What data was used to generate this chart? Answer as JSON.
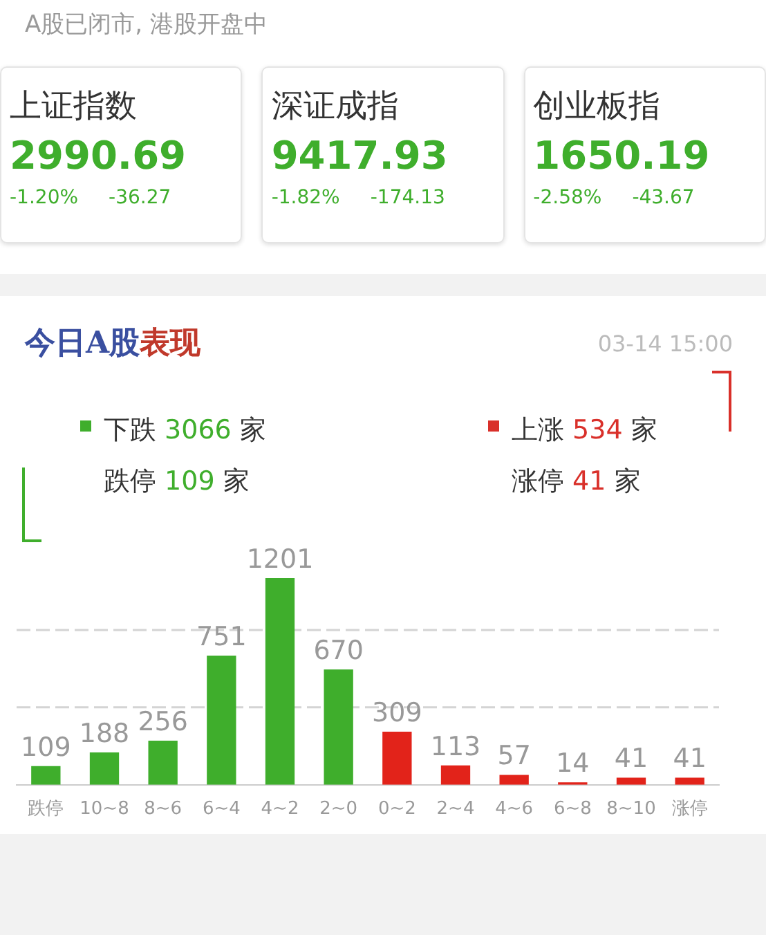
{
  "chart_data": [
    {
      "type": "other",
      "title": "A股已闭市, 港股开盘中",
      "annotations": [
        "上证指数",
        "2990.69",
        "-1.20%",
        "-36.27",
        "深证成指",
        "9417.93",
        "-1.82%",
        "-174.13",
        "创业板指",
        "1650.19",
        "-2.58%",
        "-43.67"
      ]
    },
    {
      "type": "bar",
      "title": "今日A股表现",
      "subtitle": "03-14 15:00",
      "annotations": [
        "下跌 3066 家",
        "跌停 109 家",
        "上涨 534 家",
        "涨停 41 家"
      ],
      "categories": [
        "跌停",
        "10~8",
        "8~6",
        "6~4",
        "4~2",
        "2~0",
        "0~2",
        "2~4",
        "4~6",
        "6~8",
        "8~10",
        "涨停"
      ],
      "values": [
        109,
        188,
        256,
        751,
        1201,
        670,
        309,
        113,
        57,
        14,
        41,
        41
      ],
      "colors": [
        "#3fae2c",
        "#3fae2c",
        "#3fae2c",
        "#3fae2c",
        "#3fae2c",
        "#3fae2c",
        "#e2231a",
        "#e2231a",
        "#e2231a",
        "#e2231a",
        "#e2231a",
        "#e2231a"
      ],
      "data_labels": true,
      "tick_labels": "x",
      "ylim": [
        0,
        1201
      ],
      "ref_lines": [
        {
          "axis": "y",
          "value": 450,
          "color": "#d4d4d4",
          "line_style": "dashed"
        },
        {
          "axis": "y",
          "value": 900,
          "color": "#d4d4d4",
          "line_style": "dashed"
        }
      ]
    }
  ]
}
